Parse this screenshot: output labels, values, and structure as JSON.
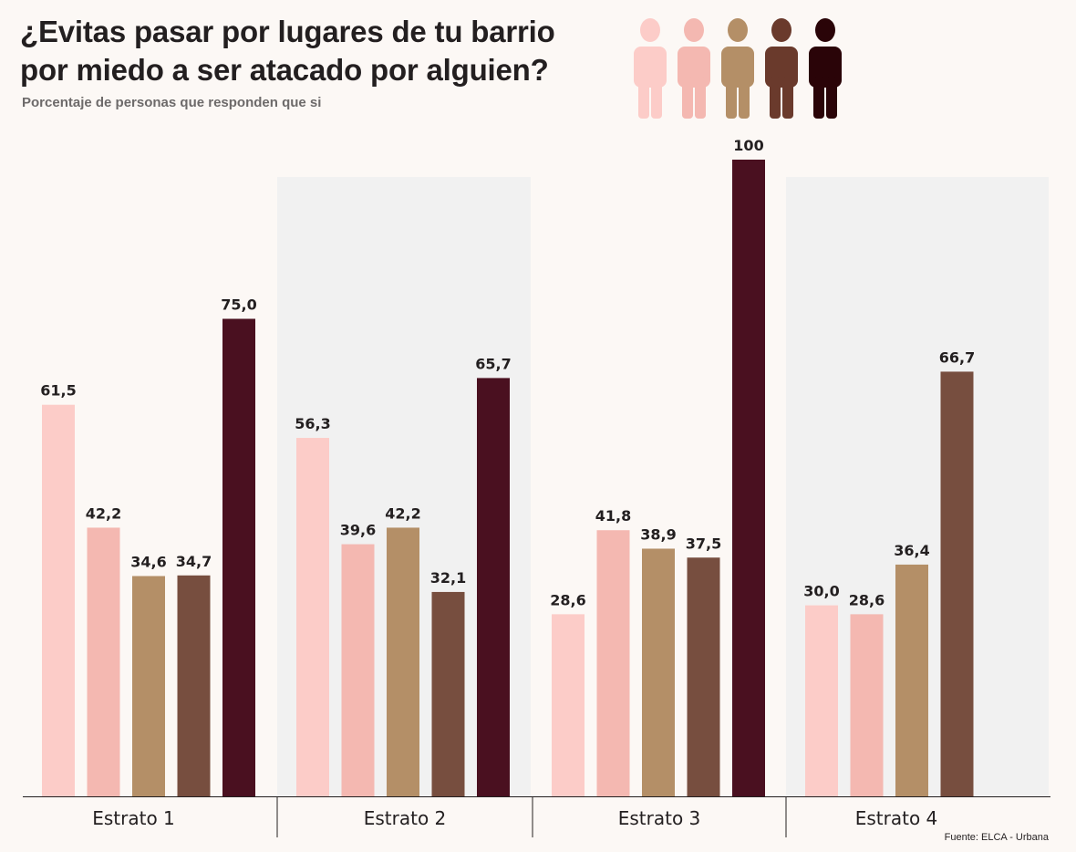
{
  "chart_data": {
    "type": "bar",
    "title": [
      "¿Evitas pasar por lugares de tu barrio",
      "por miedo a ser atacado por alguien?"
    ],
    "subtitle": "Porcentaje de personas que responden que si",
    "source": "Fuente: ELCA - Urbana",
    "categories": [
      "Estrato 1",
      "Estrato 2",
      "Estrato 3",
      "Estrato 4"
    ],
    "ylim": [
      0,
      100
    ],
    "grid": false,
    "series": [
      {
        "color": "#fcccc8",
        "values": [
          61.5,
          56.3,
          28.6,
          30.0
        ],
        "labels": [
          "61,5",
          "56,3",
          "28,6",
          "30,0"
        ]
      },
      {
        "color": "#f4b8b1",
        "values": [
          42.2,
          39.6,
          41.8,
          28.6
        ],
        "labels": [
          "42,2",
          "39,6",
          "41,8",
          "28,6"
        ]
      },
      {
        "color": "#b48f67",
        "values": [
          34.6,
          42.2,
          38.9,
          36.4
        ],
        "labels": [
          "34,6",
          "42,2",
          "38,9",
          "36,4"
        ]
      },
      {
        "color": "#774e3f",
        "values": [
          34.7,
          32.1,
          37.5,
          66.7
        ],
        "labels": [
          "34,7",
          "32,1",
          "37,5",
          "66,7"
        ]
      },
      {
        "color": "#4a1020",
        "values": [
          75.0,
          65.7,
          100,
          null
        ],
        "labels": [
          "75,0",
          "65,7",
          "100",
          ""
        ]
      }
    ],
    "legend_figures": [
      {
        "icon": "person-icon",
        "color": "#fcccc8"
      },
      {
        "icon": "person-icon",
        "color": "#f4b8b1"
      },
      {
        "icon": "person-icon",
        "color": "#b48f67"
      },
      {
        "icon": "person-icon",
        "color": "#6a3a2c"
      },
      {
        "icon": "person-icon",
        "color": "#2a0408"
      }
    ],
    "shaded_categories": [
      "Estrato 2",
      "Estrato 4"
    ],
    "shade_color": "#f1f1f1"
  }
}
